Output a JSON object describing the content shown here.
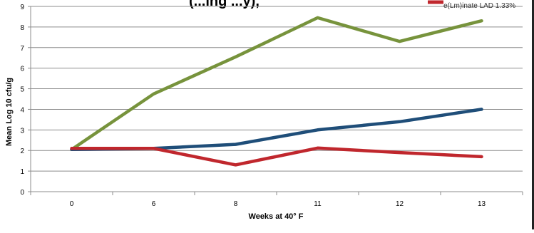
{
  "chart_data": {
    "type": "line",
    "title": "(...ing ...y),",
    "xlabel": "Weeks at 40° F",
    "ylabel": "Mean Log 10 cfu/g",
    "categories": [
      "0",
      "6",
      "8",
      "11",
      "12",
      "13"
    ],
    "ylim": [
      0,
      9
    ],
    "yticks": [
      0,
      1,
      2,
      3,
      4,
      5,
      6,
      7,
      8,
      9
    ],
    "grid": true,
    "legend_placement": "top-right",
    "series": [
      {
        "name": "",
        "color": "#77933C",
        "values": [
          2.05,
          4.75,
          6.55,
          8.45,
          7.3,
          8.3
        ]
      },
      {
        "name": "",
        "color": "#1F4E79",
        "values": [
          2.05,
          2.1,
          2.3,
          3.0,
          3.4,
          4.0
        ]
      },
      {
        "name": "e(Lm)inate LAD 1.33%",
        "color": "#C0272D",
        "values": [
          2.1,
          2.1,
          1.3,
          2.12,
          1.9,
          1.7
        ]
      }
    ]
  }
}
